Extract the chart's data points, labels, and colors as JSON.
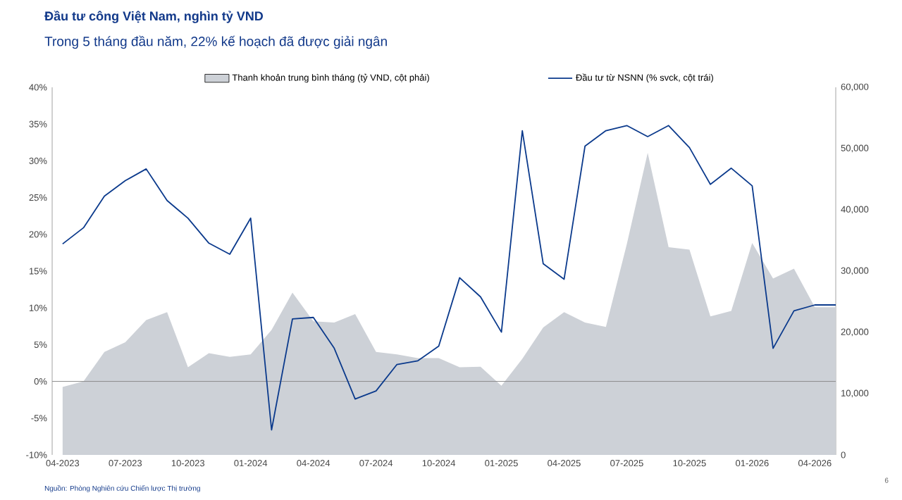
{
  "chart_data": {
    "type": "line",
    "title": "Đầu tư công Việt Nam, nghìn tỷ VND",
    "subtitle": "Trong 5 tháng đầu năm, 22% kế hoạch đã được giải ngân",
    "categories": [
      "04-2023",
      null,
      null,
      "07-2023",
      null,
      null,
      "10-2023",
      null,
      null,
      "01-2024",
      null,
      null,
      "04-2024",
      null,
      null,
      "07-2024",
      null,
      null,
      "10-2024",
      null,
      null,
      "01-2025",
      null,
      null,
      "04-2025",
      null,
      null,
      "07-2025",
      null,
      null,
      "10-2025",
      null,
      null,
      "01-2026",
      null,
      null,
      "04-2026",
      null
    ],
    "series": [
      {
        "name": "Thanh khoản trung bình tháng (tỷ VND, cột phải)",
        "type": "area",
        "axis": "y2",
        "color": "#cdd1d7",
        "values": [
          11100,
          12000,
          16800,
          18400,
          22000,
          23300,
          14300,
          16600,
          16000,
          16400,
          20400,
          26500,
          21800,
          21600,
          23000,
          16800,
          16400,
          15800,
          15800,
          14300,
          14400,
          11300,
          15700,
          20800,
          23300,
          21600,
          20900,
          34400,
          49300,
          33900,
          33500,
          22600,
          23500,
          34600,
          28800,
          30400,
          24100,
          24100
        ]
      },
      {
        "name": "Đầu tư từ NSNN (% svck, cột trái)",
        "color": "#0b3a8c",
        "values": [
          18.7,
          20.9,
          25.2,
          27.3,
          28.9,
          24.6,
          22.2,
          18.8,
          17.3,
          22.2,
          -6.6,
          8.5,
          8.7,
          4.5,
          -2.4,
          -1.3,
          2.3,
          2.8,
          4.8,
          14.1,
          11.5,
          6.7,
          34.1,
          16.0,
          13.9,
          32.0,
          34.1,
          34.8,
          33.3,
          34.8,
          31.8,
          26.8,
          29.0,
          26.6,
          4.5,
          9.6,
          10.4,
          10.4
        ]
      }
    ],
    "ylim": [
      -10,
      40
    ],
    "yticks": [
      {
        "value": -10,
        "label": "-10%"
      },
      {
        "value": -5,
        "label": "-5%"
      },
      {
        "value": 0,
        "label": "0%"
      },
      {
        "value": 5,
        "label": "5%"
      },
      {
        "value": 10,
        "label": "10%"
      },
      {
        "value": 15,
        "label": "15%"
      },
      {
        "value": 20,
        "label": "20%"
      },
      {
        "value": 25,
        "label": "25%"
      },
      {
        "value": 30,
        "label": "30%"
      },
      {
        "value": 35,
        "label": "35%"
      },
      {
        "value": 40,
        "label": "40%"
      }
    ],
    "y2lim": [
      0,
      60000
    ],
    "y2ticks": [
      0,
      {
        "value": 10000,
        "label": "10,000"
      },
      {
        "value": 20000,
        "label": "20,000"
      },
      {
        "value": 30000,
        "label": "30,000"
      },
      {
        "value": 40000,
        "label": "40,000"
      },
      {
        "value": 50000,
        "label": "50,000"
      },
      {
        "value": 60000,
        "label": "60,000"
      }
    ],
    "legend": "top",
    "annotations": [
      "Nguồn: Phòng Nghiên cứu Chiến lược Thị trường",
      "6"
    ]
  }
}
